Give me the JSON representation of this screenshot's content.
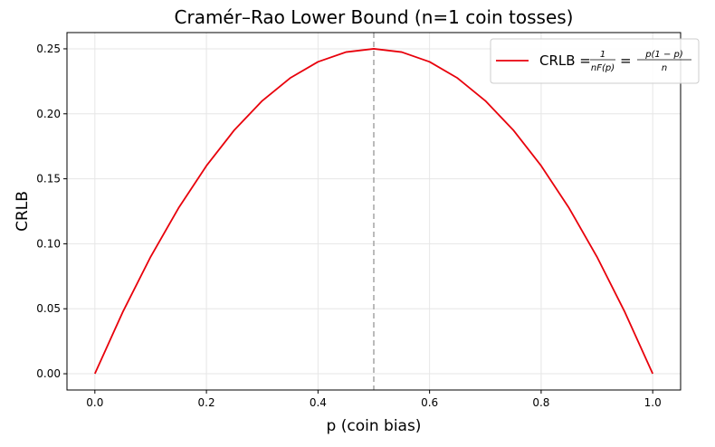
{
  "chart_data": {
    "type": "line",
    "title": "Cramér–Rao Lower Bound (n=1 coin tosses)",
    "xlabel": "p (coin bias)",
    "ylabel": "CRLB",
    "xlim": [
      -0.05,
      1.05
    ],
    "ylim": [
      -0.0125,
      0.2625
    ],
    "xticks": [
      0.0,
      0.2,
      0.4,
      0.6,
      0.8,
      1.0
    ],
    "xtick_labels": [
      "0.0",
      "0.2",
      "0.4",
      "0.6",
      "0.8",
      "1.0"
    ],
    "yticks": [
      0.0,
      0.05,
      0.1,
      0.15,
      0.2,
      0.25
    ],
    "ytick_labels": [
      "0.00",
      "0.05",
      "0.10",
      "0.15",
      "0.20",
      "0.25"
    ],
    "grid": true,
    "legend_position": "top-right",
    "series": [
      {
        "name": "CRLB = 1/(nF(p)) = p(1−p)/n",
        "color": "#e8000b",
        "x": [
          0.0,
          0.05,
          0.1,
          0.15,
          0.2,
          0.25,
          0.3,
          0.35,
          0.4,
          0.45,
          0.5,
          0.55,
          0.6,
          0.65,
          0.7,
          0.75,
          0.8,
          0.85,
          0.9,
          0.95,
          1.0
        ],
        "y": [
          0.0,
          0.0475,
          0.09,
          0.1275,
          0.16,
          0.1875,
          0.21,
          0.2275,
          0.24,
          0.2475,
          0.25,
          0.2475,
          0.24,
          0.2275,
          0.21,
          0.1875,
          0.16,
          0.1275,
          0.09,
          0.0475,
          0.0
        ]
      }
    ],
    "reference_lines": [
      {
        "orientation": "vertical",
        "x": 0.5,
        "style": "dashed",
        "color": "#aaaaaa"
      }
    ],
    "legend": {
      "prefix": "CRLB =",
      "frac1_num": "1",
      "frac1_den": "nF(p)",
      "equals": "=",
      "frac2_num": "p(1 − p)",
      "frac2_den": "n"
    }
  }
}
